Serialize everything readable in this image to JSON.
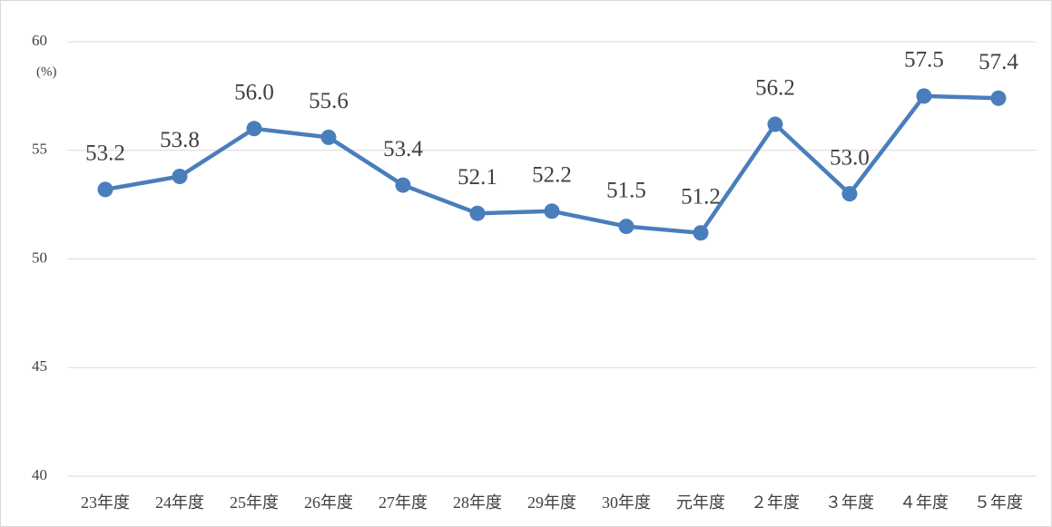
{
  "chart_data": {
    "type": "line",
    "annotation": "(%)",
    "categories": [
      "23年度",
      "24年度",
      "25年度",
      "26年度",
      "27年度",
      "28年度",
      "29年度",
      "30年度",
      "元年度",
      "２年度",
      "３年度",
      "４年度",
      "５年度"
    ],
    "series": [
      {
        "color": "#4a7ebb",
        "values": [
          53.2,
          53.8,
          56.0,
          55.6,
          53.4,
          52.1,
          52.2,
          51.5,
          51.2,
          56.2,
          53.0,
          57.5,
          57.4
        ],
        "value_labels": [
          "53.2",
          "53.8",
          "56.0",
          "55.6",
          "53.4",
          "52.1",
          "52.2",
          "51.5",
          "51.2",
          "56.2",
          "53.0",
          "57.5",
          "57.4"
        ]
      }
    ],
    "ylim": [
      40,
      60
    ],
    "yticks": [
      40,
      45,
      50,
      55,
      60
    ],
    "grid": true
  }
}
